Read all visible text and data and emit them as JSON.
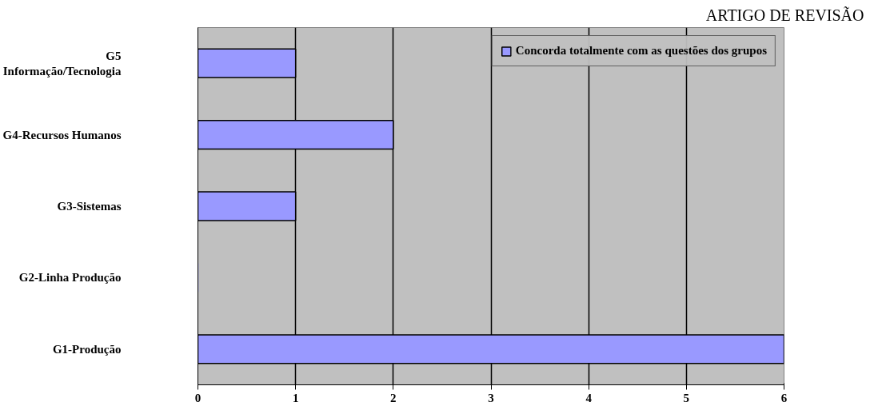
{
  "chart_data": {
    "type": "bar",
    "orientation": "horizontal",
    "categories": [
      "G5\nInformação/Tecnologia",
      "G4-Recursos Humanos",
      "G3-Sistemas",
      "G2-Linha Produção",
      "G1-Produção"
    ],
    "series": [
      {
        "name": "Concorda totalmente com as questões dos grupos",
        "color": "#9999ff",
        "values": [
          1,
          2,
          1,
          0,
          6
        ]
      }
    ],
    "xlim": [
      0,
      6
    ],
    "xticks": [
      0,
      1,
      2,
      3,
      4,
      5,
      6
    ],
    "grid": "x",
    "legend": "top right",
    "annotations": [
      "ARTIGO DE REVISÃO"
    ]
  }
}
